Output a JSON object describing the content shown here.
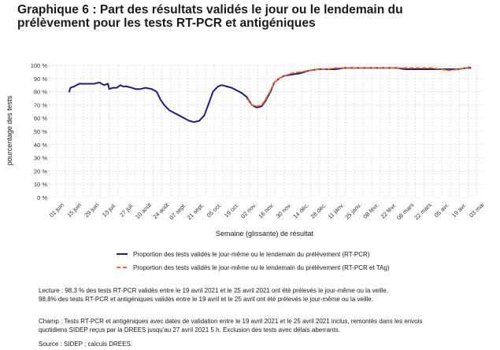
{
  "title_line1": "Graphique 6 : Part des résultats validés le jour ou le lendemain du",
  "title_line2": "prélèvement pour les tests RT-PCR et antigéniques",
  "notes": {
    "lecture1": "Lecture : 98,3 % des tests RT-PCR validés entre le 19 avril 2021 et le 25 avril 2021 ont été prélevés le jour-même ou la veille.",
    "lecture2": "98,8% des tests RT-PCR et antigéniques validés entre le 19 avril et le 25 avril ont été prélevés le jour-même ou la veille.",
    "champ1": "Champ : Tests RT-PCR et antigéniques avec dates de validation entre le 19 avril 2021 et le 25 avril 2021 inclus, remontés dans les envois",
    "champ2": "quotidiens SIDEP reçus par la DREES jusqu'au 27 avril 2021 5 h. Exclusion des tests avec délais aberrants.",
    "source": "Source : SIDEP ; calculs DREES."
  },
  "colors": {
    "rtpcr": "#1f1f7a",
    "rtpcr_tag": "#f26a2e",
    "grid": "#d0d0d0"
  },
  "chart_data": {
    "type": "line",
    "xlabel": "Semaine (glissante) de résultat",
    "ylabel": "pourcentage des tests",
    "ylim": [
      0,
      100
    ],
    "yticks": [
      0,
      10,
      20,
      30,
      40,
      50,
      60,
      70,
      80,
      90,
      100
    ],
    "ytick_labels": [
      "0 %",
      "10 %",
      "20 %",
      "30 %",
      "40 %",
      "50 %",
      "60 %",
      "70 %",
      "80 %",
      "90 %",
      "100 %"
    ],
    "x_range": [
      "2020-05-26",
      "2021-05-03"
    ],
    "xtick_dates": [
      "2020-06-01",
      "2020-06-15",
      "2020-06-29",
      "2020-07-13",
      "2020-07-27",
      "2020-08-10",
      "2020-08-24",
      "2020-09-07",
      "2020-09-21",
      "2020-10-05",
      "2020-10-19",
      "2020-11-02",
      "2020-11-16",
      "2020-11-30",
      "2020-12-14",
      "2020-12-28",
      "2021-01-11",
      "2021-01-25",
      "2021-02-08",
      "2021-02-22",
      "2021-03-08",
      "2021-03-22",
      "2021-04-05",
      "2021-04-19",
      "2021-05-03"
    ],
    "xtick_labels": [
      "01 juin",
      "15 juin",
      "29 juin",
      "13 juil.",
      "27 juil.",
      "10 août",
      "24 août",
      "07 sept.",
      "21 sept.",
      "05 oct.",
      "19 oct.",
      "02 nov.",
      "16 nov.",
      "30 nov.",
      "14 déc.",
      "28 déc.",
      "11 janv.",
      "25 janv.",
      "08 févr.",
      "22 févr.",
      "08 mars",
      "22 mars",
      "05 avr.",
      "19 avr.",
      "03 mai"
    ],
    "grid": true,
    "legend_position": "bottom",
    "series": [
      {
        "name": "Proportion des tests validés le jour-même ou le lendemain du prélèvement (RT-PCR)",
        "color": "#1f1f7a",
        "dash": false,
        "x": [
          "2020-06-05",
          "2020-06-06",
          "2020-06-09",
          "2020-06-13",
          "2020-06-17",
          "2020-06-21",
          "2020-06-25",
          "2020-06-29",
          "2020-07-03",
          "2020-07-06",
          "2020-07-07",
          "2020-07-10",
          "2020-07-13",
          "2020-07-16",
          "2020-07-18",
          "2020-07-21",
          "2020-07-25",
          "2020-07-28",
          "2020-08-01",
          "2020-08-05",
          "2020-08-10",
          "2020-08-14",
          "2020-08-17",
          "2020-08-20",
          "2020-08-24",
          "2020-08-28",
          "2020-09-01",
          "2020-09-05",
          "2020-09-09",
          "2020-09-13",
          "2020-09-17",
          "2020-09-21",
          "2020-09-25",
          "2020-09-28",
          "2020-10-02",
          "2020-10-05",
          "2020-10-09",
          "2020-10-13",
          "2020-10-17",
          "2020-10-21",
          "2020-10-25",
          "2020-10-29",
          "2020-11-02",
          "2020-11-06",
          "2020-11-09",
          "2020-11-13",
          "2020-11-16",
          "2020-11-20",
          "2020-11-24",
          "2020-11-30",
          "2020-12-07",
          "2020-12-14",
          "2020-12-21",
          "2020-12-28",
          "2021-01-04",
          "2021-01-11",
          "2021-01-18",
          "2021-01-25",
          "2021-02-01",
          "2021-02-08",
          "2021-02-15",
          "2021-02-22",
          "2021-03-01",
          "2021-03-08",
          "2021-03-15",
          "2021-03-22",
          "2021-03-29",
          "2021-04-05",
          "2021-04-12",
          "2021-04-19",
          "2021-04-22"
        ],
        "values": [
          80,
          83,
          84,
          86,
          86,
          86,
          86,
          87,
          85,
          86,
          82,
          83,
          83,
          85,
          84,
          84,
          83,
          82,
          82,
          83,
          82,
          80,
          74,
          70,
          66,
          64,
          62,
          60,
          58,
          57,
          58,
          62,
          72,
          80,
          84,
          85,
          84,
          83,
          81,
          79,
          76,
          70,
          68,
          69,
          73,
          80,
          87,
          90,
          92,
          93,
          94,
          96,
          97,
          97,
          97,
          98,
          98,
          98,
          98,
          98,
          98,
          98,
          97,
          97,
          97,
          97,
          97,
          97,
          97,
          98,
          98
        ]
      },
      {
        "name": "Proportion des tests validés le jour-même ou le lendemain du prélèvement (RT-PCR et TAg)",
        "color": "#f26a2e",
        "dash": true,
        "x": [
          "2020-10-25",
          "2020-10-29",
          "2020-11-02",
          "2020-11-06",
          "2020-11-09",
          "2020-11-13",
          "2020-11-16",
          "2020-11-20",
          "2020-11-24",
          "2020-11-30",
          "2020-12-07",
          "2020-12-14",
          "2020-12-21",
          "2020-12-28",
          "2021-01-04",
          "2021-01-11",
          "2021-01-18",
          "2021-01-25",
          "2021-02-01",
          "2021-02-08",
          "2021-02-15",
          "2021-02-22",
          "2021-03-01",
          "2021-03-08",
          "2021-03-15",
          "2021-03-22",
          "2021-03-29",
          "2021-04-05",
          "2021-04-12",
          "2021-04-19",
          "2021-04-22"
        ],
        "values": [
          75,
          70,
          69,
          70,
          74,
          81,
          87,
          90,
          92,
          94,
          95,
          96,
          97,
          97,
          98,
          98,
          98,
          98,
          98,
          98,
          98,
          98,
          98,
          98,
          98,
          98,
          97,
          96,
          97,
          98,
          99
        ]
      }
    ]
  }
}
